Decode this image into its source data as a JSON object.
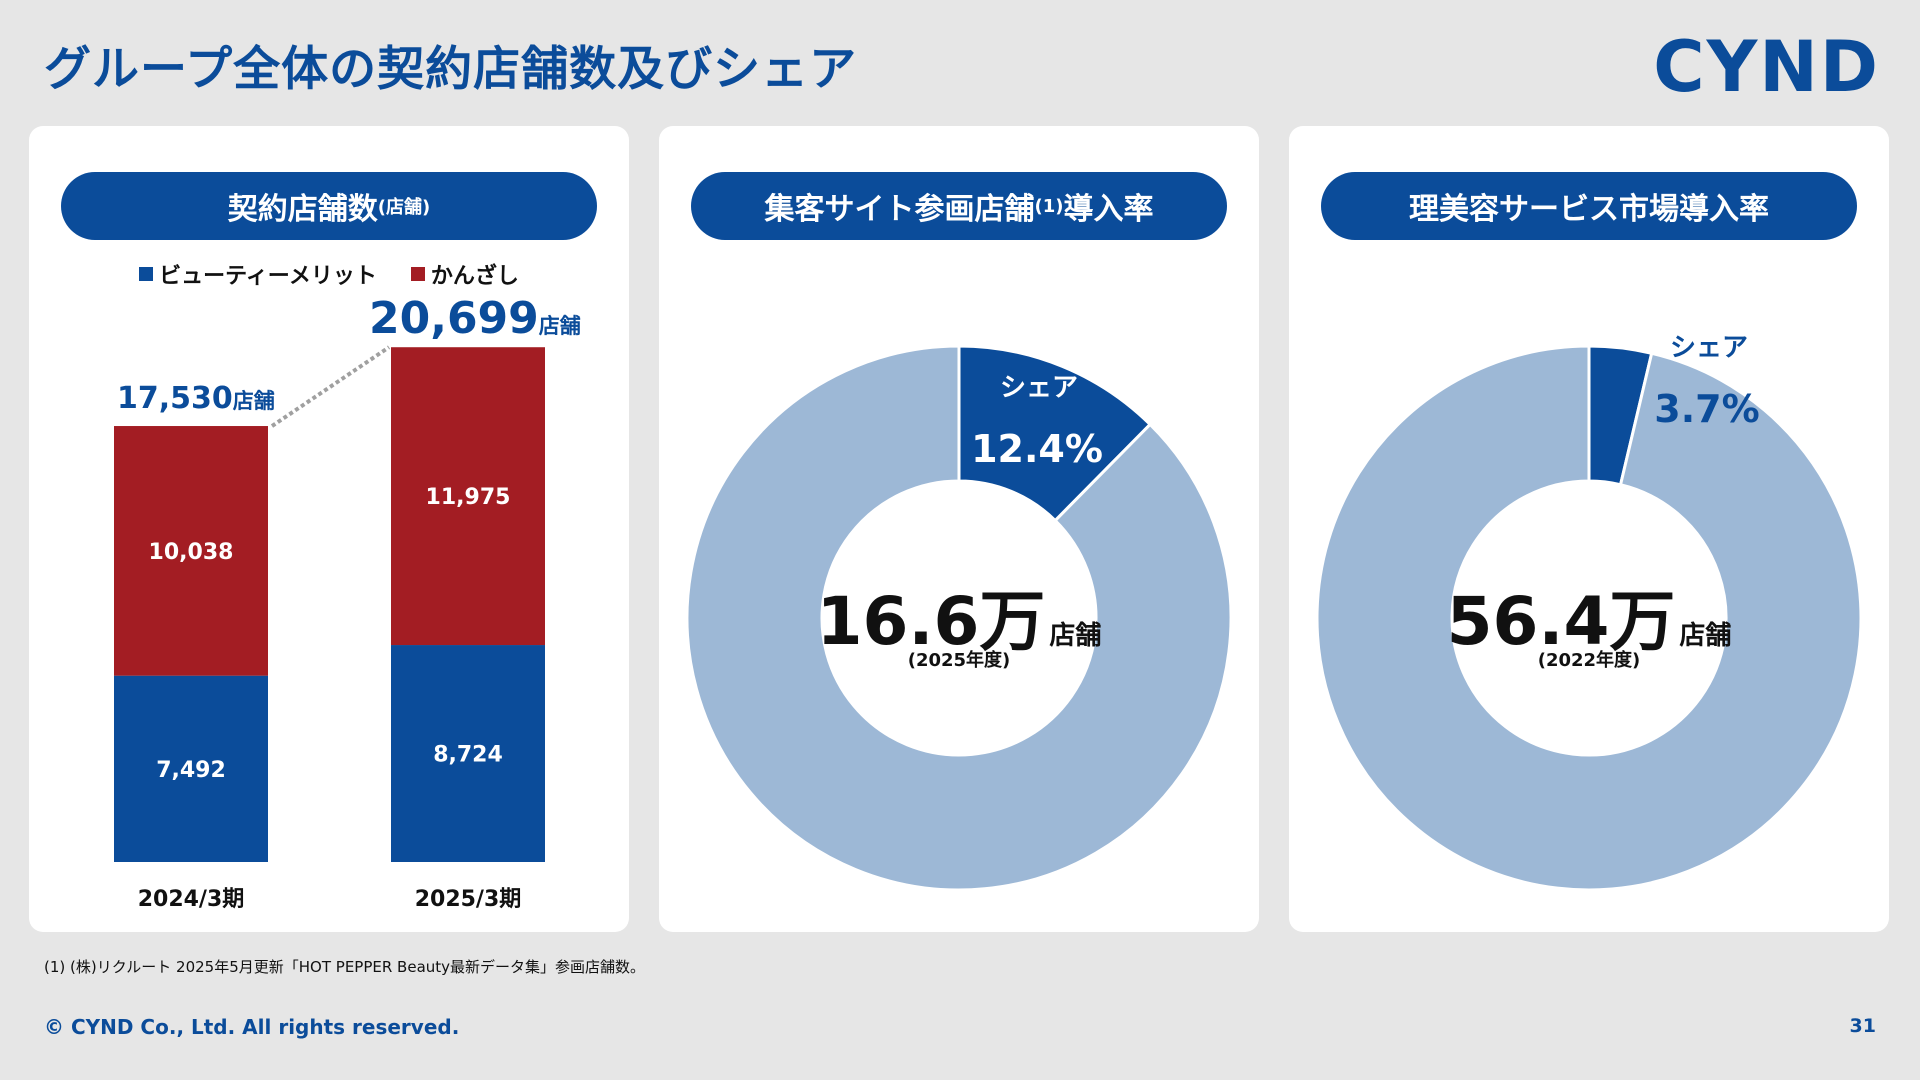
{
  "title": "グループ全体の契約店舗数及びシェア",
  "logo": "CYND",
  "colors": {
    "brand": "#0b4c9a",
    "red": "#a31d23",
    "light_blue": "#9db8d6"
  },
  "panel1": {
    "heading": "契約店舗数",
    "heading_small": "(店舗)",
    "legend": [
      "ビューティーメリット",
      "かんざし"
    ]
  },
  "panel2": {
    "heading": "集客サイト参画店舗",
    "heading_note": "(1)",
    "heading_tail": "導入率",
    "share_label": "シェア",
    "share_value": "12.4%",
    "center_value": "16.6万",
    "center_unit": "店舗",
    "center_sub": "(2025年度)"
  },
  "panel3": {
    "heading": "理美容サービス市場導入率",
    "share_label": "シェア",
    "share_value": "3.7%",
    "center_value": "56.4万",
    "center_unit": "店舗",
    "center_sub": "(2022年度)"
  },
  "chart_data": [
    {
      "type": "bar",
      "stacked": true,
      "categories": [
        "2024/3期",
        "2025/3期"
      ],
      "series": [
        {
          "name": "ビューティーメリット",
          "values": [
            7492,
            8724
          ],
          "labels": [
            "7,492",
            "8,724"
          ]
        },
        {
          "name": "かんざし",
          "values": [
            10038,
            11975
          ],
          "labels": [
            "10,038",
            "11,975"
          ]
        }
      ],
      "totals": [
        "17,530",
        "20,699"
      ],
      "total_unit": "店舗",
      "ylim": [
        0,
        21000
      ]
    },
    {
      "type": "pie",
      "donut": true,
      "slices": [
        {
          "name": "シェア",
          "value": 12.4
        },
        {
          "name": "",
          "value": 87.6
        }
      ]
    },
    {
      "type": "pie",
      "donut": true,
      "slices": [
        {
          "name": "シェア",
          "value": 3.7
        },
        {
          "name": "",
          "value": 96.3
        }
      ]
    }
  ],
  "footnote": "(1) (株)リクルート 2025年5月更新「HOT PEPPER Beauty最新データ集」参画店舗数。",
  "copyright": "© CYND Co., Ltd. All rights reserved.",
  "page_number": "31"
}
